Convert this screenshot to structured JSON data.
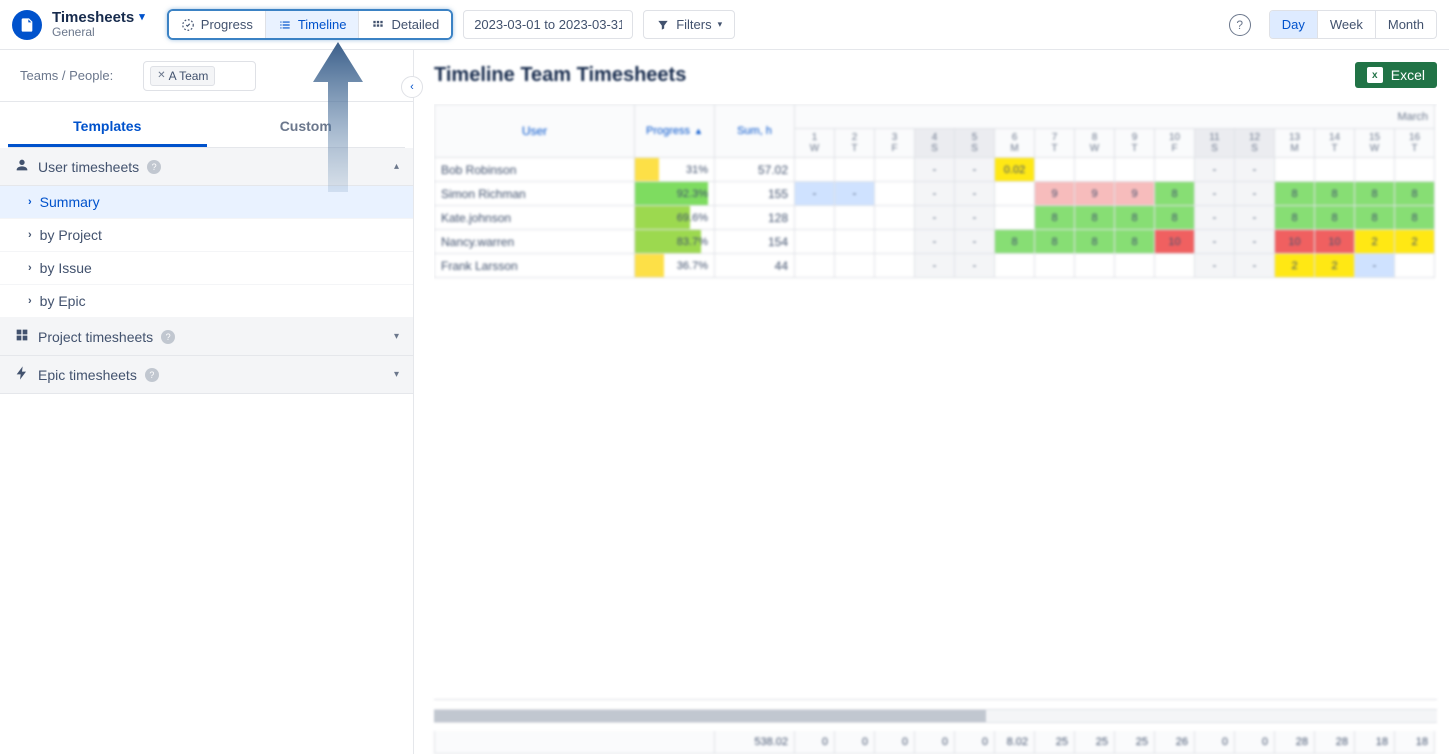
{
  "header": {
    "title": "Timesheets",
    "subtitle": "General",
    "views": {
      "progress": "Progress",
      "timeline": "Timeline",
      "detailed": "Detailed"
    },
    "date_range": "2023-03-01 to 2023-03-31",
    "filters": "Filters",
    "granularity": {
      "day": "Day",
      "week": "Week",
      "month": "Month"
    }
  },
  "sidebar": {
    "teams_label": "Teams / People:",
    "team_chip": "A Team",
    "tabs": {
      "templates": "Templates",
      "custom": "Custom"
    },
    "groups": [
      {
        "label": "User timesheets",
        "expanded": true,
        "icon": "user",
        "items": [
          {
            "label": "Summary",
            "active": true
          },
          {
            "label": "by Project",
            "active": false
          },
          {
            "label": "by Issue",
            "active": false
          },
          {
            "label": "by Epic",
            "active": false
          }
        ]
      },
      {
        "label": "Project timesheets",
        "expanded": false,
        "icon": "grid"
      },
      {
        "label": "Epic timesheets",
        "expanded": false,
        "icon": "bolt"
      }
    ]
  },
  "main": {
    "title": "Timeline Team Timesheets",
    "export": "Excel",
    "table": {
      "cols": {
        "user": "User",
        "progress": "Progress",
        "sum": "Sum, h",
        "month": "March"
      },
      "days": [
        {
          "n": "1",
          "d": "W",
          "weekend": false
        },
        {
          "n": "2",
          "d": "T",
          "weekend": false
        },
        {
          "n": "3",
          "d": "F",
          "weekend": false
        },
        {
          "n": "4",
          "d": "S",
          "weekend": true
        },
        {
          "n": "5",
          "d": "S",
          "weekend": true
        },
        {
          "n": "6",
          "d": "M",
          "weekend": false
        },
        {
          "n": "7",
          "d": "T",
          "weekend": false
        },
        {
          "n": "8",
          "d": "W",
          "weekend": false
        },
        {
          "n": "9",
          "d": "T",
          "weekend": false
        },
        {
          "n": "10",
          "d": "F",
          "weekend": false
        },
        {
          "n": "11",
          "d": "S",
          "weekend": true
        },
        {
          "n": "12",
          "d": "S",
          "weekend": true
        },
        {
          "n": "13",
          "d": "M",
          "weekend": false
        },
        {
          "n": "14",
          "d": "T",
          "weekend": false
        },
        {
          "n": "15",
          "d": "W",
          "weekend": false
        },
        {
          "n": "16",
          "d": "T",
          "weekend": false
        }
      ],
      "rows": [
        {
          "name": "Bob Robinson",
          "progress": "31%",
          "prog_pct": 31,
          "prog_color": "#fde047",
          "sum": "57.02",
          "cells": [
            {
              "v": "",
              "c": null
            },
            {
              "v": "",
              "c": null
            },
            {
              "v": "",
              "c": null
            },
            {
              "v": "-",
              "c": null
            },
            {
              "v": "-",
              "c": null
            },
            {
              "v": "0.02",
              "c": "#ffe814"
            },
            {
              "v": "",
              "c": null
            },
            {
              "v": "",
              "c": null
            },
            {
              "v": "",
              "c": null
            },
            {
              "v": "",
              "c": null
            },
            {
              "v": "-",
              "c": null
            },
            {
              "v": "-",
              "c": null
            },
            {
              "v": "",
              "c": null
            },
            {
              "v": "",
              "c": null
            },
            {
              "v": "",
              "c": null
            },
            {
              "v": "",
              "c": null
            }
          ]
        },
        {
          "name": "Simon Richman",
          "progress": "92.3%",
          "prog_pct": 92,
          "prog_color": "#7edc60",
          "sum": "155",
          "cells": [
            {
              "v": "-",
              "c": "#cfe2ff"
            },
            {
              "v": "-",
              "c": "#cfe2ff"
            },
            {
              "v": "",
              "c": null
            },
            {
              "v": "-",
              "c": null
            },
            {
              "v": "-",
              "c": null
            },
            {
              "v": "",
              "c": null
            },
            {
              "v": "9",
              "c": "#f7bcbc"
            },
            {
              "v": "9",
              "c": "#f7bcbc"
            },
            {
              "v": "9",
              "c": "#f7bcbc"
            },
            {
              "v": "8",
              "c": "#87de74"
            },
            {
              "v": "-",
              "c": null
            },
            {
              "v": "-",
              "c": null
            },
            {
              "v": "8",
              "c": "#87de74"
            },
            {
              "v": "8",
              "c": "#87de74"
            },
            {
              "v": "8",
              "c": "#87de74"
            },
            {
              "v": "8",
              "c": "#87de74"
            }
          ]
        },
        {
          "name": "Kate.johnson",
          "progress": "69.6%",
          "prog_pct": 70,
          "prog_color": "#9cd94f",
          "sum": "128",
          "cells": [
            {
              "v": "",
              "c": null
            },
            {
              "v": "",
              "c": null
            },
            {
              "v": "",
              "c": null
            },
            {
              "v": "-",
              "c": null
            },
            {
              "v": "-",
              "c": null
            },
            {
              "v": "",
              "c": null
            },
            {
              "v": "8",
              "c": "#87de74"
            },
            {
              "v": "8",
              "c": "#87de74"
            },
            {
              "v": "8",
              "c": "#87de74"
            },
            {
              "v": "8",
              "c": "#87de74"
            },
            {
              "v": "-",
              "c": null
            },
            {
              "v": "-",
              "c": null
            },
            {
              "v": "8",
              "c": "#87de74"
            },
            {
              "v": "8",
              "c": "#87de74"
            },
            {
              "v": "8",
              "c": "#87de74"
            },
            {
              "v": "8",
              "c": "#87de74"
            }
          ]
        },
        {
          "name": "Nancy.warren",
          "progress": "83.7%",
          "prog_pct": 84,
          "prog_color": "#9cd94f",
          "sum": "154",
          "cells": [
            {
              "v": "",
              "c": null
            },
            {
              "v": "",
              "c": null
            },
            {
              "v": "",
              "c": null
            },
            {
              "v": "-",
              "c": null
            },
            {
              "v": "-",
              "c": null
            },
            {
              "v": "8",
              "c": "#87de74"
            },
            {
              "v": "8",
              "c": "#87de74"
            },
            {
              "v": "8",
              "c": "#87de74"
            },
            {
              "v": "8",
              "c": "#87de74"
            },
            {
              "v": "10",
              "c": "#f06060"
            },
            {
              "v": "-",
              "c": null
            },
            {
              "v": "-",
              "c": null
            },
            {
              "v": "10",
              "c": "#f06060"
            },
            {
              "v": "10",
              "c": "#f06060"
            },
            {
              "v": "2",
              "c": "#ffe814"
            },
            {
              "v": "2",
              "c": "#ffe814"
            }
          ]
        },
        {
          "name": "Frank Larsson",
          "progress": "36.7%",
          "prog_pct": 37,
          "prog_color": "#fde047",
          "sum": "44",
          "cells": [
            {
              "v": "",
              "c": null
            },
            {
              "v": "",
              "c": null
            },
            {
              "v": "",
              "c": null
            },
            {
              "v": "-",
              "c": null
            },
            {
              "v": "-",
              "c": null
            },
            {
              "v": "",
              "c": null
            },
            {
              "v": "",
              "c": null
            },
            {
              "v": "",
              "c": null
            },
            {
              "v": "",
              "c": null
            },
            {
              "v": "",
              "c": null
            },
            {
              "v": "-",
              "c": null
            },
            {
              "v": "-",
              "c": null
            },
            {
              "v": "2",
              "c": "#ffe814"
            },
            {
              "v": "2",
              "c": "#ffe814"
            },
            {
              "v": "-",
              "c": "#cfe2ff"
            },
            {
              "v": "",
              "c": null
            }
          ]
        }
      ],
      "totals": [
        "538.02",
        "0",
        "0",
        "0",
        "0",
        "0",
        "8.02",
        "25",
        "25",
        "25",
        "26",
        "0",
        "0",
        "28",
        "28",
        "18",
        "18"
      ]
    }
  }
}
